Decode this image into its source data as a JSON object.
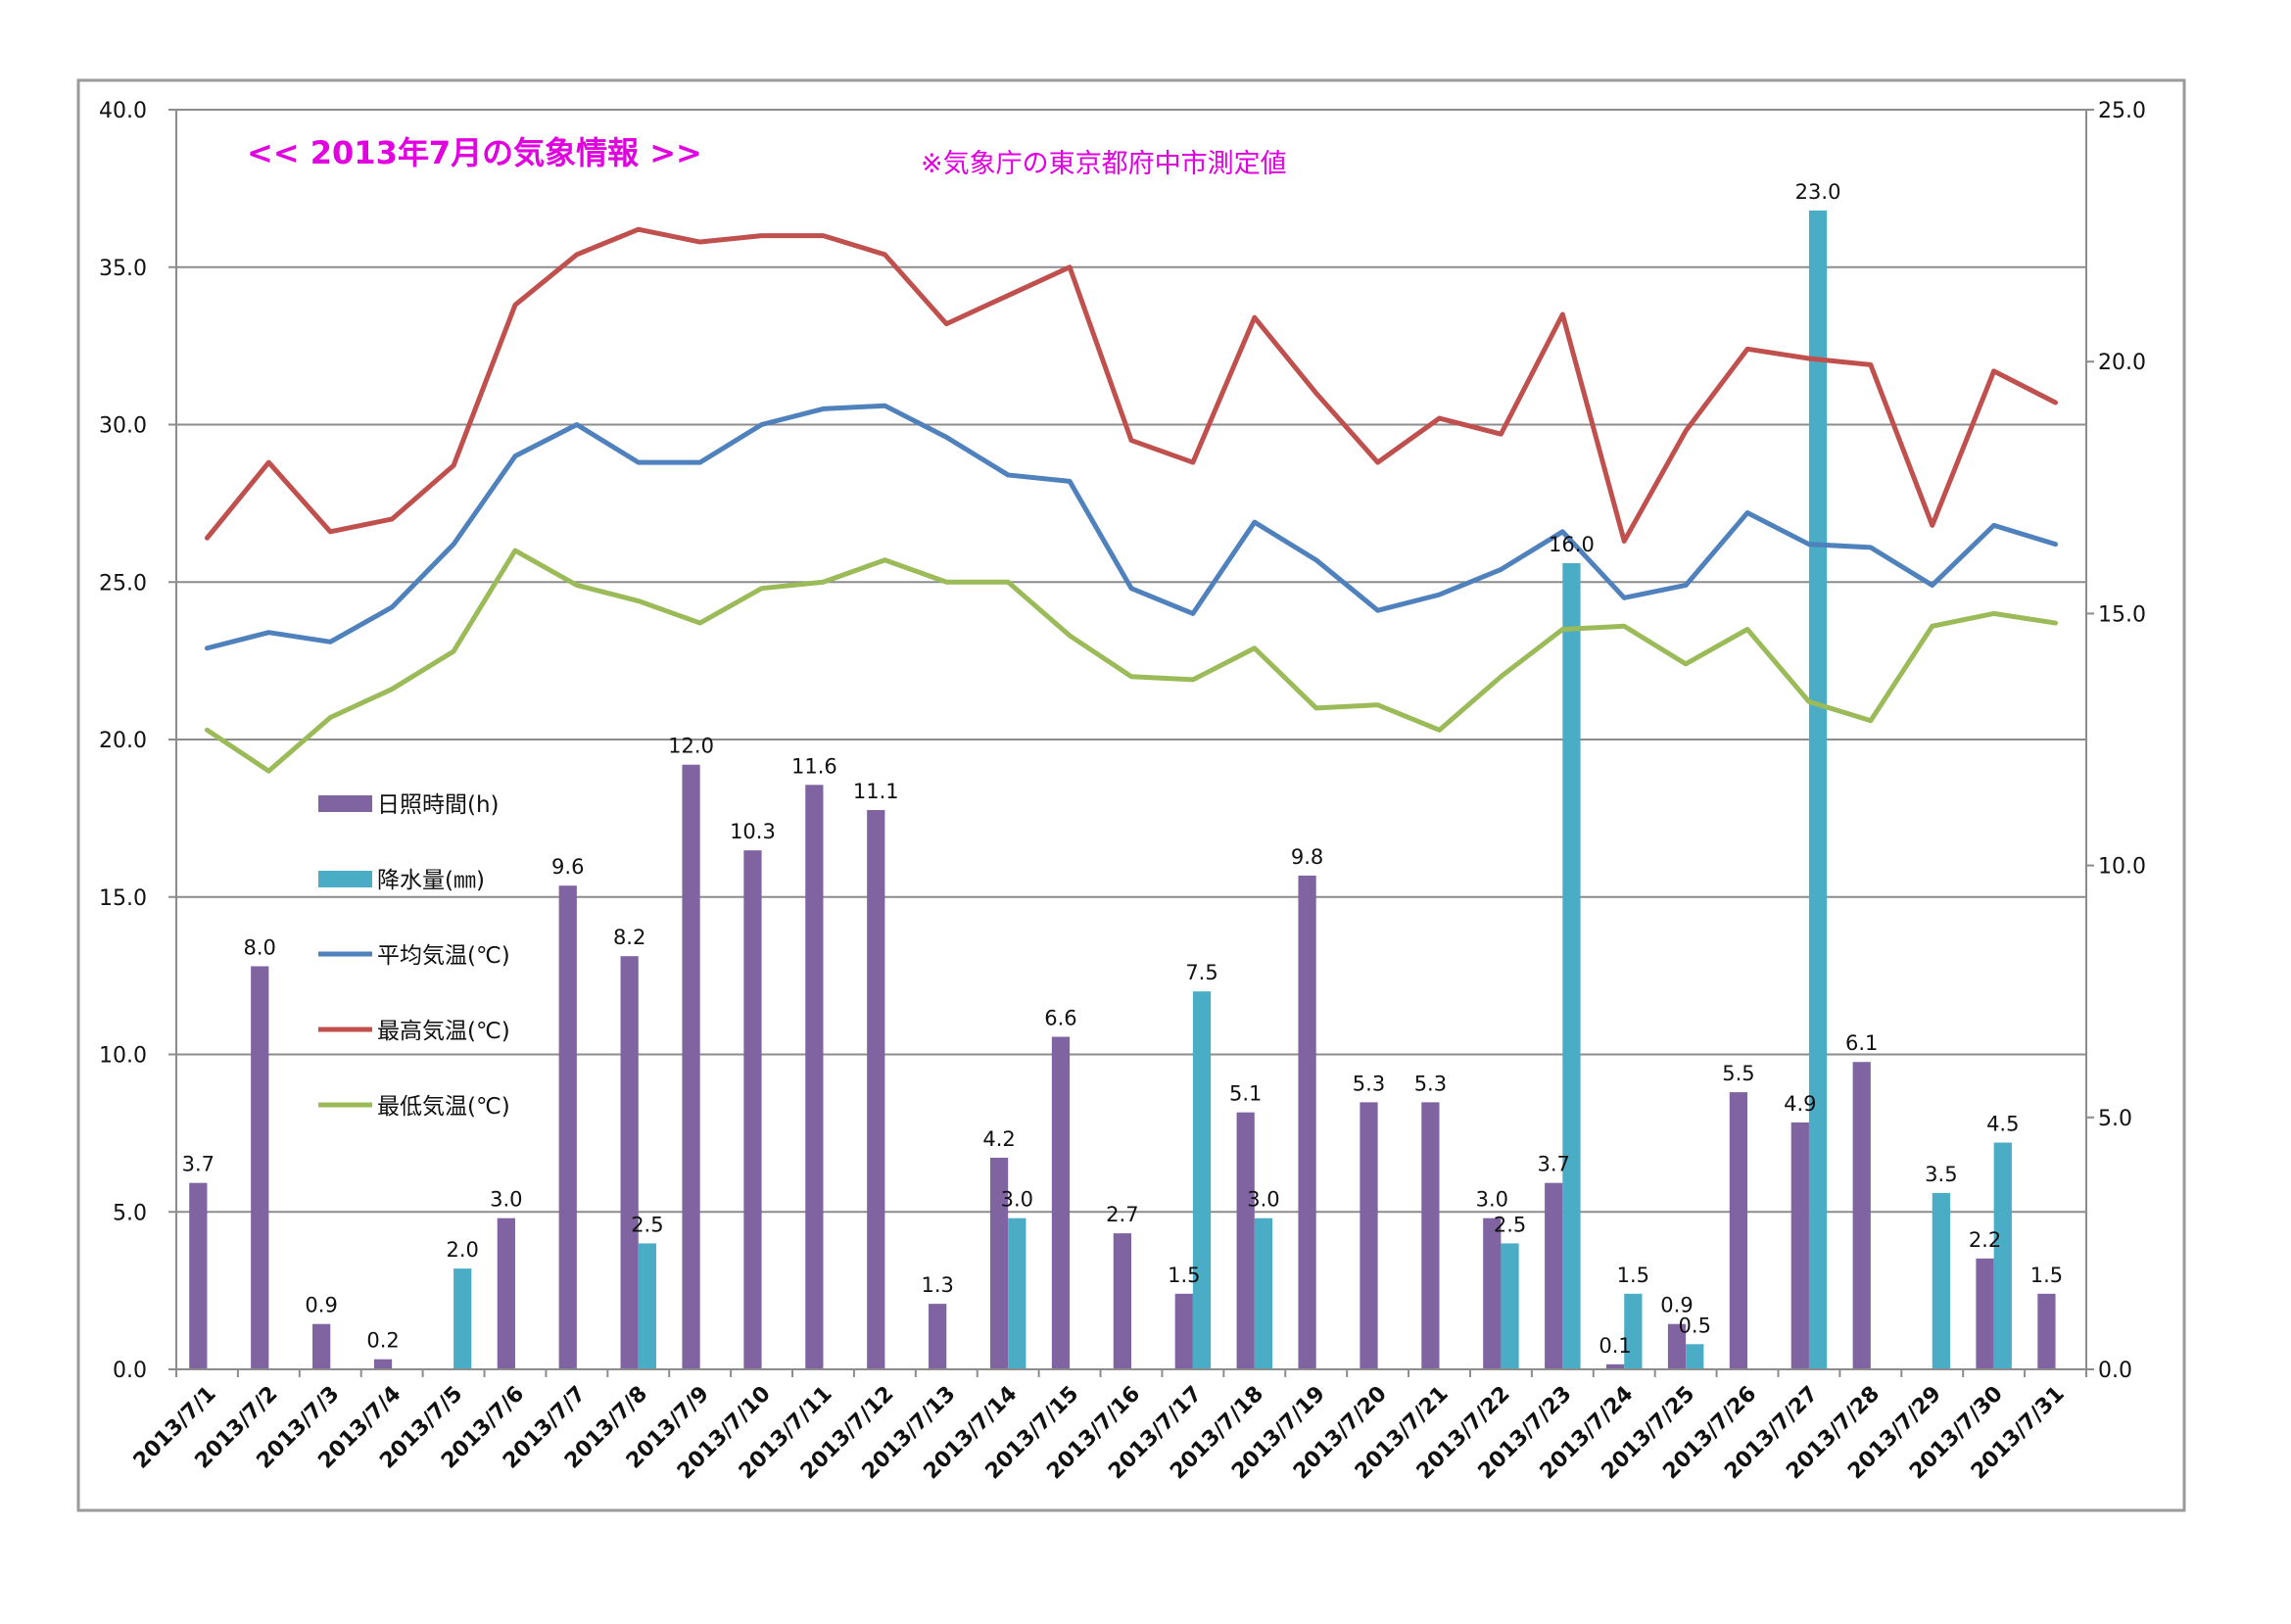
{
  "chart_data": {
    "type": "bar",
    "title": "<<  2013年7月の気象情報  >>",
    "subtitle": "※気象庁の東京都府中市測定値",
    "categories": [
      "2013/7/1",
      "2013/7/2",
      "2013/7/3",
      "2013/7/4",
      "2013/7/5",
      "2013/7/6",
      "2013/7/7",
      "2013/7/8",
      "2013/7/9",
      "2013/7/10",
      "2013/7/11",
      "2013/7/12",
      "2013/7/13",
      "2013/7/14",
      "2013/7/15",
      "2013/7/16",
      "2013/7/17",
      "2013/7/18",
      "2013/7/19",
      "2013/7/20",
      "2013/7/21",
      "2013/7/22",
      "2013/7/23",
      "2013/7/24",
      "2013/7/25",
      "2013/7/26",
      "2013/7/27",
      "2013/7/28",
      "2013/7/29",
      "2013/7/30",
      "2013/7/31"
    ],
    "y_left": {
      "min": 0,
      "max": 40,
      "step": 5,
      "ticks": [
        "0.0",
        "5.0",
        "10.0",
        "15.0",
        "20.0",
        "25.0",
        "30.0",
        "35.0",
        "40.0"
      ]
    },
    "y_right": {
      "min": 0,
      "max": 25,
      "step": 5,
      "ticks": [
        "0.0",
        "5.0",
        "10.0",
        "15.0",
        "20.0",
        "25.0"
      ]
    },
    "grid": true,
    "legend_position": "left-middle",
    "series": [
      {
        "name": "日照時間(h)",
        "kind": "bar",
        "axis": "right",
        "color": "#8064a2",
        "values": [
          3.7,
          8.0,
          0.9,
          0.2,
          null,
          3.0,
          9.6,
          8.2,
          12.0,
          10.3,
          11.6,
          11.1,
          1.3,
          4.2,
          6.6,
          2.7,
          1.5,
          5.1,
          9.8,
          5.3,
          5.3,
          3.0,
          3.7,
          0.1,
          0.9,
          5.5,
          4.9,
          6.1,
          null,
          2.2,
          1.5
        ],
        "labels": [
          "3.7",
          "8.0",
          "0.9",
          "0.2",
          "",
          "3.0",
          "9.6",
          "8.2",
          "12.0",
          "10.3",
          "11.6",
          "11.1",
          "1.3",
          "4.2",
          "6.6",
          "2.7",
          "1.5",
          "5.1",
          "9.8",
          "5.3",
          "5.3",
          "3.0",
          "3.7",
          "0.1",
          "0.9",
          "5.5",
          "4.9",
          "6.1",
          "",
          "2.2",
          "1.5"
        ]
      },
      {
        "name": "降水量(㎜)",
        "kind": "bar",
        "axis": "right",
        "color": "#4bacc6",
        "values": [
          null,
          null,
          null,
          null,
          2.0,
          null,
          null,
          2.5,
          null,
          null,
          null,
          null,
          null,
          3.0,
          null,
          null,
          7.5,
          3.0,
          null,
          null,
          null,
          2.5,
          16.0,
          1.5,
          0.5,
          null,
          23.0,
          null,
          3.5,
          4.5,
          null
        ],
        "labels": [
          "",
          "",
          "",
          "",
          "2.0",
          "",
          "",
          "2.5",
          "",
          "",
          "",
          "",
          "",
          "3.0",
          "",
          "",
          "7.5",
          "3.0",
          "",
          "",
          "",
          "2.5",
          "16.0",
          "1.5",
          "0.5",
          "",
          "23.0",
          "",
          "3.5",
          "4.5",
          ""
        ]
      },
      {
        "name": "平均気温(℃)",
        "kind": "line",
        "axis": "left",
        "color": "#4f81bd",
        "values": [
          22.9,
          23.4,
          23.1,
          24.2,
          26.2,
          29.0,
          30.0,
          28.8,
          28.8,
          30.0,
          30.5,
          30.6,
          29.6,
          28.4,
          28.2,
          24.8,
          24.0,
          26.9,
          25.7,
          24.1,
          24.6,
          25.4,
          26.6,
          24.5,
          24.9,
          27.2,
          26.2,
          26.1,
          24.9,
          26.8,
          26.2
        ]
      },
      {
        "name": "最高気温(℃)",
        "kind": "line",
        "axis": "left",
        "color": "#c0504d",
        "values": [
          26.4,
          28.8,
          26.6,
          27.0,
          28.7,
          33.8,
          35.4,
          36.2,
          35.8,
          36.0,
          36.0,
          35.4,
          33.2,
          34.1,
          35.0,
          29.5,
          28.8,
          33.4,
          31.0,
          28.8,
          30.2,
          29.7,
          33.5,
          26.3,
          29.8,
          32.4,
          32.1,
          31.9,
          26.8,
          31.7,
          30.7
        ]
      },
      {
        "name": "最低気温(℃)",
        "kind": "line",
        "axis": "left",
        "color": "#9bbb59",
        "values": [
          20.3,
          19.0,
          20.7,
          21.6,
          22.8,
          26.0,
          24.9,
          24.4,
          23.7,
          24.8,
          25.0,
          25.7,
          25.0,
          25.0,
          23.3,
          22.0,
          21.9,
          22.9,
          21.0,
          21.1,
          20.3,
          22.0,
          23.5,
          23.6,
          22.4,
          23.5,
          21.2,
          20.6,
          23.6,
          24.0,
          23.7
        ]
      }
    ]
  }
}
